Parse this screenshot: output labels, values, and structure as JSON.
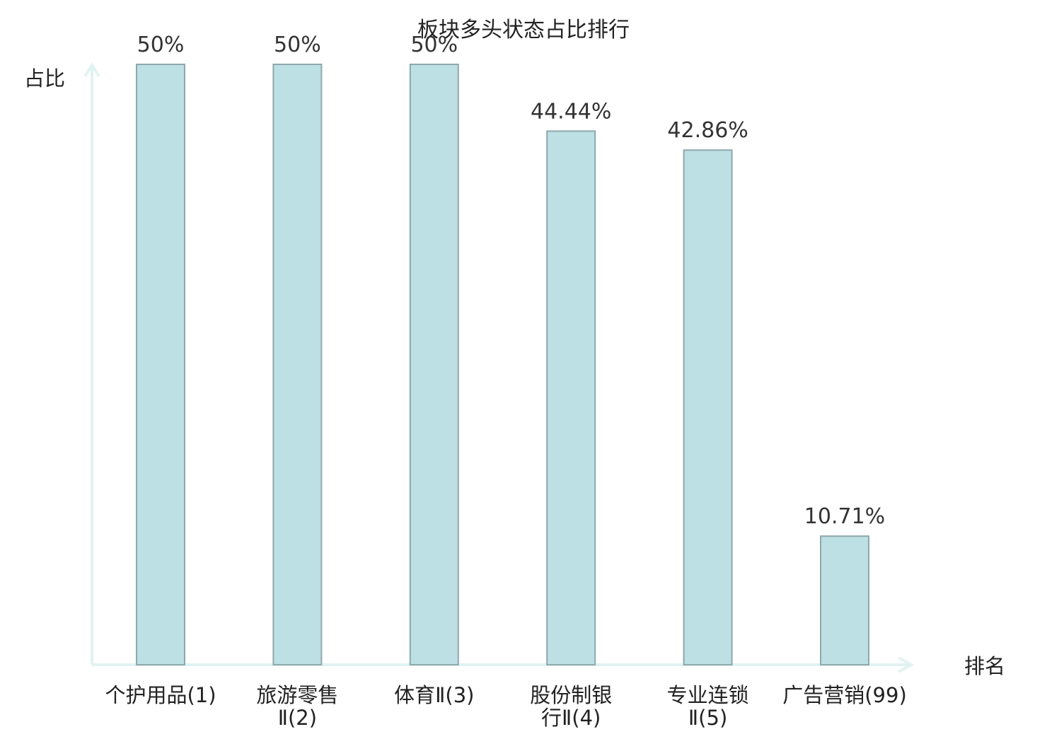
{
  "chart_data": {
    "type": "bar",
    "title": "板块多头状态占比排行",
    "ylabel": "占比",
    "xlabel": "排名",
    "ylim": [
      0,
      50
    ],
    "grid": false,
    "categories": [
      "个护用品(1)",
      "旅游零售Ⅱ(2)",
      "体育Ⅱ(3)",
      "股份制银行Ⅱ(4)",
      "专业连锁Ⅱ(5)",
      "广告营销(99)"
    ],
    "category_lines": [
      [
        "个护用品(1)"
      ],
      [
        "旅游零售",
        "Ⅱ(2)"
      ],
      [
        "体育Ⅱ(3)"
      ],
      [
        "股份制银",
        "行Ⅱ(4)"
      ],
      [
        "专业连锁",
        "Ⅱ(5)"
      ],
      [
        "广告营销(99)"
      ]
    ],
    "values": [
      50,
      50,
      50,
      44.44,
      42.86,
      10.71
    ],
    "value_labels": [
      "50%",
      "50%",
      "50%",
      "44.44%",
      "42.86%",
      "10.71%"
    ],
    "highlight_index": 5,
    "colors": {
      "bar_fill": "#bce0e3",
      "bar_stroke": "#8fa8ab",
      "axis": "#e1f3f1",
      "text": "#222222",
      "value_text": "#333333",
      "highlight_text": "#e0201b"
    }
  }
}
